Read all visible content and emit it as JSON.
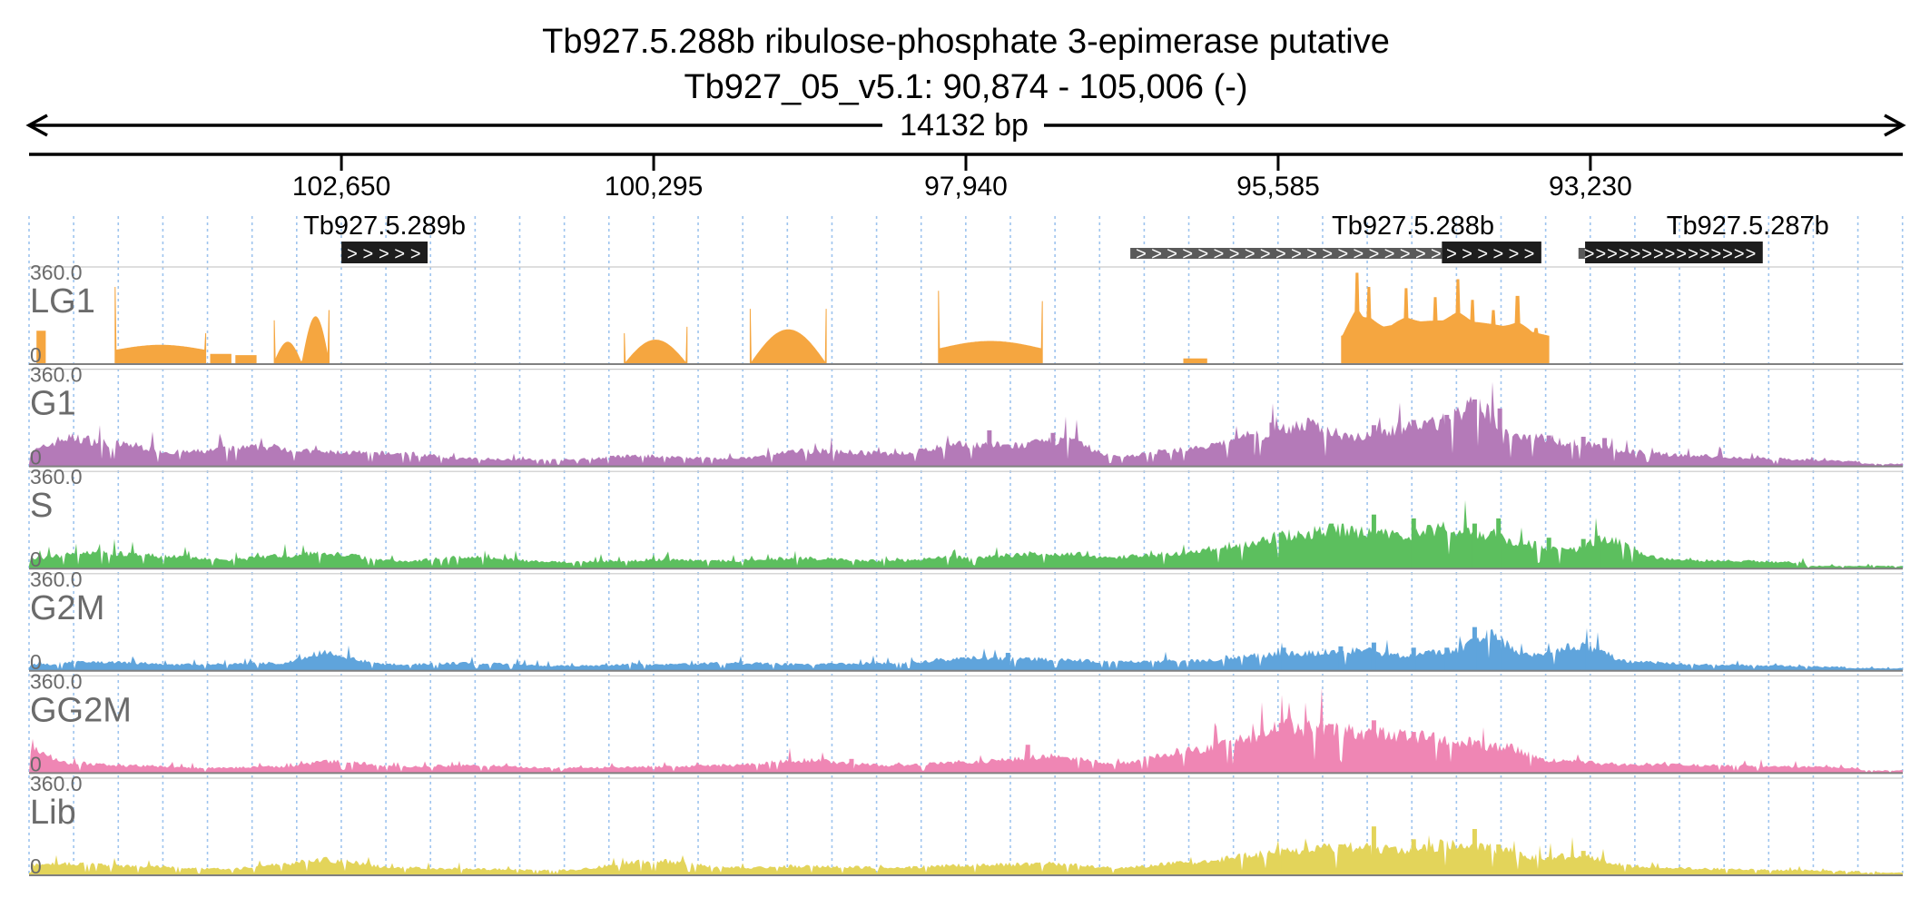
{
  "chart_data": {
    "type": "area",
    "title": "Tb927.5.288b  ribulose-phosphate 3-epimerase  putative",
    "subtitle": "Tb927_05_v5.1: 90,874 - 105,006 (-)",
    "span_label": "14132 bp",
    "strand": "-",
    "region": {
      "start": 90874,
      "end": 105006
    },
    "x_ticks": [
      {
        "value": 102650,
        "label": "102,650"
      },
      {
        "value": 100295,
        "label": "100,295"
      },
      {
        "value": 97940,
        "label": "97,940"
      },
      {
        "value": 95585,
        "label": "95,585"
      },
      {
        "value": 93230,
        "label": "93,230"
      }
    ],
    "genes": [
      {
        "name": "Tb927.5.289b",
        "start": 102000,
        "end": 102650,
        "utr_start": null,
        "strand_marks": ">>>>>"
      },
      {
        "name": "Tb927.5.288b",
        "start": 93600,
        "end": 96700,
        "utr_start": 94350,
        "strand_marks": ">>>>>>>>>>>>>>>>>>>>>>>>>>"
      },
      {
        "name": "Tb927.5.287b",
        "start": 91930,
        "end": 93320,
        "utr_start": 93270,
        "strand_marks": ">>>>>>>>>>>>>>>"
      }
    ],
    "grid": true,
    "ylim": [
      0,
      360
    ],
    "tracks": [
      {
        "name": "LG1",
        "color": "#f5a640",
        "ymax_label": "360.0",
        "ymin_label": "0",
        "segments": [
          {
            "start": 104950,
            "end": 104880,
            "shape": "flat",
            "level": 130
          },
          {
            "start": 104360,
            "end": 103670,
            "shape": "saddle",
            "level": 55,
            "peak": 75,
            "edge_left": 300,
            "edge_right": 120
          },
          {
            "start": 103640,
            "end": 103480,
            "shape": "flat",
            "level": 40
          },
          {
            "start": 103450,
            "end": 103290,
            "shape": "flat",
            "level": 35
          },
          {
            "start": 103160,
            "end": 102740,
            "shape": "twinmound",
            "level": 180,
            "edge_left": 170,
            "edge_right": 210
          },
          {
            "start": 100520,
            "end": 100040,
            "shape": "mound",
            "level": 95,
            "edge_left": 120,
            "edge_right": 145
          },
          {
            "start": 99570,
            "end": 98990,
            "shape": "mound",
            "level": 135,
            "edge_left": 215,
            "edge_right": 215
          },
          {
            "start": 98150,
            "end": 97360,
            "shape": "saddle",
            "level": 60,
            "peak": 90,
            "edge_left": 285,
            "edge_right": 245
          },
          {
            "start": 96300,
            "end": 96120,
            "shape": "flat",
            "level": 22
          },
          {
            "start": 95110,
            "end": 93540,
            "shape": "peaks",
            "level": 110,
            "peaks": [
              [
                94990,
                355
              ],
              [
                94900,
                300
              ],
              [
                94620,
                295
              ],
              [
                94400,
                260
              ],
              [
                94230,
                330
              ],
              [
                94120,
                250
              ],
              [
                93960,
                210
              ],
              [
                93780,
                265
              ],
              [
                93640,
                140
              ]
            ]
          }
        ]
      },
      {
        "name": "G1",
        "color": "#b47ab8",
        "ymax_label": "360.0",
        "ymin_label": "0",
        "noise": 0.2,
        "peaks": [
          [
            105000,
            60
          ],
          [
            104700,
            110
          ],
          [
            104300,
            85
          ],
          [
            103900,
            55
          ],
          [
            103200,
            75
          ],
          [
            102800,
            55
          ],
          [
            102200,
            50
          ],
          [
            101700,
            30
          ],
          [
            101000,
            25
          ],
          [
            100400,
            40
          ],
          [
            99700,
            30
          ],
          [
            99100,
            60
          ],
          [
            98500,
            50
          ],
          [
            97900,
            85
          ],
          [
            97600,
            80
          ],
          [
            97200,
            100
          ],
          [
            96800,
            40
          ],
          [
            96200,
            70
          ],
          [
            95750,
            120
          ],
          [
            95400,
            160
          ],
          [
            95000,
            120
          ],
          [
            94700,
            145
          ],
          [
            94400,
            170
          ],
          [
            94100,
            230
          ],
          [
            93800,
            125
          ],
          [
            93300,
            90
          ],
          [
            92900,
            55
          ],
          [
            92400,
            40
          ],
          [
            91900,
            30
          ],
          [
            91200,
            20
          ]
        ],
        "spikes": [
          [
            97300,
            130
          ],
          [
            97780,
            140
          ],
          [
            95800,
            125
          ],
          [
            95650,
            170
          ],
          [
            94880,
            160
          ],
          [
            94580,
            180
          ],
          [
            94330,
            200
          ],
          [
            94120,
            260
          ],
          [
            93930,
            225
          ],
          [
            93560,
            120
          ],
          [
            93300,
            115
          ],
          [
            93140,
            110
          ]
        ]
      },
      {
        "name": "S",
        "color": "#5cbf5e",
        "ymax_label": "360.0",
        "ymin_label": "0",
        "noise": 0.2,
        "peaks": [
          [
            105000,
            40
          ],
          [
            104500,
            65
          ],
          [
            104100,
            50
          ],
          [
            103500,
            35
          ],
          [
            103100,
            50
          ],
          [
            102800,
            60
          ],
          [
            102200,
            30
          ],
          [
            101700,
            45
          ],
          [
            101000,
            25
          ],
          [
            100200,
            35
          ],
          [
            99700,
            30
          ],
          [
            99200,
            40
          ],
          [
            98600,
            30
          ],
          [
            97900,
            45
          ],
          [
            97300,
            60
          ],
          [
            96800,
            45
          ],
          [
            96300,
            60
          ],
          [
            95900,
            90
          ],
          [
            95500,
            130
          ],
          [
            95200,
            150
          ],
          [
            94900,
            140
          ],
          [
            94600,
            130
          ],
          [
            94300,
            155
          ],
          [
            94000,
            135
          ],
          [
            93700,
            95
          ],
          [
            93400,
            70
          ],
          [
            93100,
            115
          ],
          [
            92700,
            40
          ],
          [
            92200,
            30
          ],
          [
            91600,
            25
          ]
        ],
        "spikes": [
          [
            95580,
            140
          ],
          [
            95200,
            175
          ],
          [
            94880,
            210
          ],
          [
            94580,
            195
          ],
          [
            94120,
            175
          ],
          [
            93940,
            195
          ],
          [
            93560,
            120
          ],
          [
            93300,
            115
          ],
          [
            93150,
            100
          ]
        ]
      },
      {
        "name": "G2M",
        "color": "#5fa4dc",
        "ymax_label": "360.0",
        "ymin_label": "0",
        "noise": 0.2,
        "peaks": [
          [
            105000,
            25
          ],
          [
            104500,
            35
          ],
          [
            103800,
            25
          ],
          [
            103100,
            30
          ],
          [
            102800,
            70
          ],
          [
            102300,
            25
          ],
          [
            101700,
            30
          ],
          [
            101000,
            20
          ],
          [
            100300,
            25
          ],
          [
            99700,
            30
          ],
          [
            99200,
            25
          ],
          [
            98500,
            30
          ],
          [
            97900,
            50
          ],
          [
            97300,
            45
          ],
          [
            96800,
            35
          ],
          [
            96200,
            40
          ],
          [
            95800,
            60
          ],
          [
            95400,
            70
          ],
          [
            95000,
            80
          ],
          [
            94600,
            60
          ],
          [
            94300,
            75
          ],
          [
            94000,
            140
          ],
          [
            93700,
            60
          ],
          [
            93300,
            95
          ],
          [
            92900,
            35
          ],
          [
            92400,
            25
          ],
          [
            91900,
            20
          ],
          [
            91300,
            15
          ]
        ],
        "spikes": [
          [
            97640,
            70
          ],
          [
            95560,
            90
          ],
          [
            95130,
            95
          ],
          [
            94880,
            110
          ],
          [
            94580,
            90
          ],
          [
            94330,
            90
          ],
          [
            94120,
            170
          ],
          [
            93940,
            120
          ],
          [
            93300,
            105
          ]
        ]
      },
      {
        "name": "GG2M",
        "color": "#ef86b4",
        "ymax_label": "360.0",
        "ymin_label": "0",
        "noise": 0.2,
        "peaks": [
          [
            105000,
            90
          ],
          [
            104700,
            40
          ],
          [
            104300,
            30
          ],
          [
            103700,
            20
          ],
          [
            103100,
            25
          ],
          [
            102700,
            45
          ],
          [
            102200,
            25
          ],
          [
            101700,
            30
          ],
          [
            101000,
            20
          ],
          [
            100300,
            25
          ],
          [
            99700,
            30
          ],
          [
            99200,
            50
          ],
          [
            98500,
            30
          ],
          [
            97900,
            45
          ],
          [
            97300,
            65
          ],
          [
            96800,
            40
          ],
          [
            96200,
            90
          ],
          [
            95800,
            140
          ],
          [
            95550,
            190
          ],
          [
            95300,
            170
          ],
          [
            95000,
            160
          ],
          [
            94600,
            145
          ],
          [
            94200,
            120
          ],
          [
            93900,
            100
          ],
          [
            93500,
            50
          ],
          [
            93000,
            35
          ],
          [
            92300,
            30
          ],
          [
            91700,
            25
          ],
          [
            91200,
            20
          ]
        ],
        "spikes": [
          [
            98820,
            55
          ],
          [
            97490,
            110
          ],
          [
            95580,
            195
          ],
          [
            95200,
            190
          ],
          [
            94880,
            205
          ],
          [
            94580,
            160
          ],
          [
            94330,
            110
          ],
          [
            94120,
            110
          ]
        ]
      },
      {
        "name": "Lib",
        "color": "#e3d45a",
        "ymax_label": "360.0",
        "ymin_label": "0",
        "noise": 0.2,
        "peaks": [
          [
            105000,
            40
          ],
          [
            104600,
            45
          ],
          [
            104200,
            35
          ],
          [
            103500,
            25
          ],
          [
            103100,
            45
          ],
          [
            102800,
            60
          ],
          [
            102200,
            30
          ],
          [
            101700,
            25
          ],
          [
            101000,
            20
          ],
          [
            100300,
            55
          ],
          [
            99700,
            30
          ],
          [
            99200,
            35
          ],
          [
            98500,
            30
          ],
          [
            97900,
            40
          ],
          [
            97300,
            45
          ],
          [
            96800,
            30
          ],
          [
            96200,
            50
          ],
          [
            95800,
            80
          ],
          [
            95400,
            100
          ],
          [
            95000,
            110
          ],
          [
            94600,
            95
          ],
          [
            94300,
            120
          ],
          [
            94000,
            105
          ],
          [
            93600,
            70
          ],
          [
            93300,
            75
          ],
          [
            92900,
            35
          ],
          [
            92300,
            25
          ],
          [
            91700,
            20
          ],
          [
            91200,
            15
          ]
        ],
        "spikes": [
          [
            95560,
            100
          ],
          [
            95130,
            120
          ],
          [
            94880,
            190
          ],
          [
            94580,
            140
          ],
          [
            94120,
            180
          ],
          [
            93940,
            120
          ],
          [
            93300,
            95
          ]
        ]
      }
    ]
  }
}
